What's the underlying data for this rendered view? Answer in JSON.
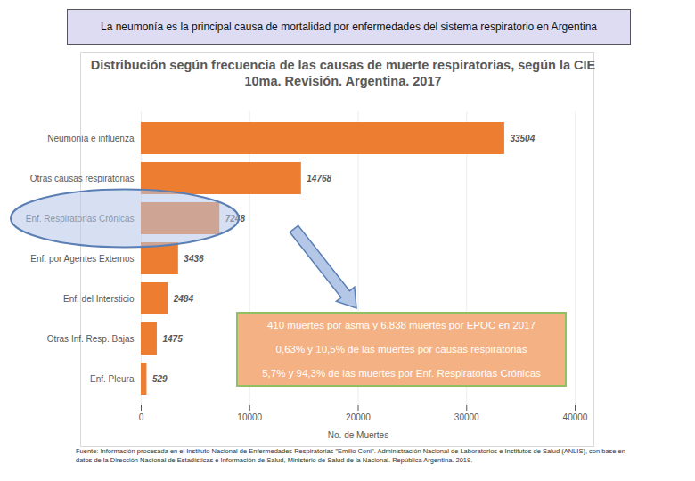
{
  "header": "La neumonía es la principal causa de mortalidad por enfermedades del sistema respiratorio en Argentina",
  "chart_data": {
    "type": "bar",
    "orientation": "horizontal",
    "title": "Distribución según frecuencia de las causas de muerte respiratorias, según la CIE 10ma. Revisión. Argentina. 2017",
    "categories": [
      "Neumonía e influenza",
      "Otras causas respiratorias",
      "Enf. Respiratorias Crónicas",
      "Enf. por Agentes Externos",
      "Enf. del Intersticio",
      "Otras Inf. Resp. Bajas",
      "Enf. Pleura"
    ],
    "values": [
      33504,
      14768,
      7248,
      3436,
      2484,
      1475,
      529
    ],
    "color": "#ed7d31",
    "xlim": [
      0,
      40000
    ],
    "xticks": [
      0,
      10000,
      20000,
      30000,
      40000
    ],
    "xlabel": "No. de Muertes",
    "grid": true,
    "data_labels": true,
    "annotation": {
      "category": "Enf. Respiratorias Crónicas",
      "lines": [
        "410 muertes por asma y 6.838 muertes por EPOC en 2017",
        "0,63% y 10,5% de las muertes por causas respiratorias",
        "5,7% y 94,3% de las muertes por Enf. Respiratorias Crónicas"
      ]
    }
  },
  "source": "Fuente: Información procesada en el Instituto Nacional de Enfermedades Respiratorias \"Emilio Coni\". Administración Nacional de Laboratorios e Institutos de Salud (ANLIS), con base en datos de la Dirección Nacional de Estadísticas e Información de Salud, Ministerio de Salud de la Nacional. República Argentina. 2019."
}
